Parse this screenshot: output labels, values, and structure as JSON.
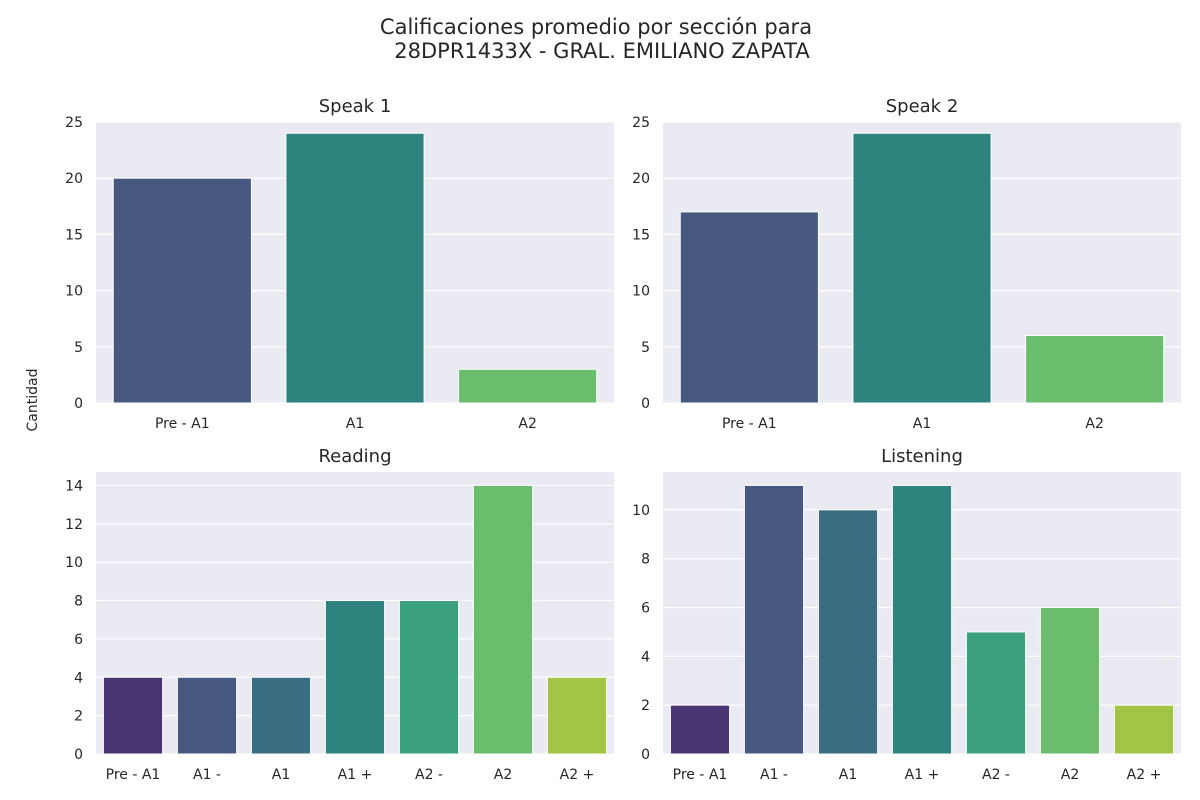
{
  "figure": {
    "title_line1": "Calificaciones promedio por sección para",
    "title_line2": "28DPR1433X - GRAL. EMILIANO ZAPATA",
    "ylabel": "Cantidad"
  },
  "chart_data": [
    {
      "type": "bar",
      "title": "Speak 1",
      "categories": [
        "Pre - A1",
        "A1",
        "A2"
      ],
      "values": [
        20,
        24,
        3
      ],
      "colors": [
        "#46587f",
        "#2e837e",
        "#6abd6c"
      ],
      "ylim": [
        0,
        25
      ],
      "yticks": [
        0,
        5,
        10,
        15,
        20,
        25
      ],
      "grid": true
    },
    {
      "type": "bar",
      "title": "Speak 2",
      "categories": [
        "Pre - A1",
        "A1",
        "A2"
      ],
      "values": [
        17,
        24,
        6
      ],
      "colors": [
        "#46587f",
        "#2e837e",
        "#6abd6c"
      ],
      "ylim": [
        0,
        25
      ],
      "yticks": [
        0,
        5,
        10,
        15,
        20,
        25
      ],
      "grid": true
    },
    {
      "type": "bar",
      "title": "Reading",
      "categories": [
        "Pre - A1",
        "A1 -",
        "A1",
        "A1 +",
        "A2 -",
        "A2",
        "A2 +"
      ],
      "values": [
        4,
        4,
        4,
        8,
        8,
        14,
        4
      ],
      "colors": [
        "#4a3573",
        "#46587f",
        "#3a6e82",
        "#2e837e",
        "#3ba07d",
        "#6abd6c",
        "#a2c545"
      ],
      "ylim": [
        0,
        14.7
      ],
      "yticks": [
        0,
        2,
        4,
        6,
        8,
        10,
        12,
        14
      ],
      "grid": true
    },
    {
      "type": "bar",
      "title": "Listening",
      "categories": [
        "Pre - A1",
        "A1 -",
        "A1",
        "A1 +",
        "A2 -",
        "A2",
        "A2 +"
      ],
      "values": [
        2,
        11,
        10,
        11,
        5,
        6,
        2
      ],
      "colors": [
        "#4a3573",
        "#46587f",
        "#3a6e82",
        "#2e837e",
        "#3ba07d",
        "#6abd6c",
        "#a2c545"
      ],
      "ylim": [
        0,
        11.55
      ],
      "yticks": [
        0,
        2,
        4,
        6,
        8,
        10
      ],
      "grid": true
    }
  ]
}
